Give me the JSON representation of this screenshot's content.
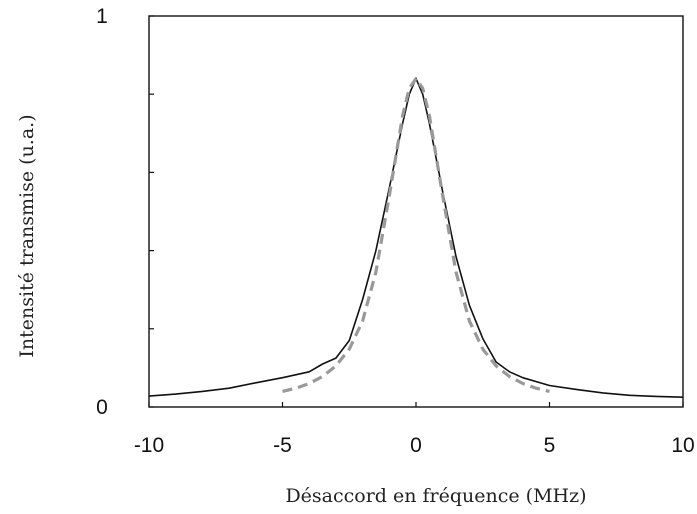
{
  "chart_data": {
    "type": "line",
    "xlabel": "Désaccord en fréquence (MHz)",
    "ylabel": "Intensité transmise (u.a.)",
    "xlim": [
      -10,
      10
    ],
    "ylim": [
      0,
      1
    ],
    "x_ticks": [
      -10,
      -5,
      0,
      5,
      10
    ],
    "x_tick_labels": [
      "-10",
      "-5",
      "0",
      "5",
      "10"
    ],
    "y_ticks": [
      0,
      0.2,
      0.4,
      0.6,
      0.8,
      1
    ],
    "y_tick_labels": [
      "0",
      "",
      "",
      "",
      "",
      "1"
    ],
    "grid": false,
    "legend": "none",
    "series": [
      {
        "style": "solid",
        "color": "#111111",
        "x": [
          -10,
          -9,
          -8,
          -7,
          -6,
          -5,
          -4,
          -3.5,
          -3,
          -2.5,
          -2,
          -1.5,
          -1,
          -0.5,
          -0.25,
          0,
          0.25,
          0.5,
          1,
          1.5,
          2,
          2.5,
          3,
          3.5,
          4,
          5,
          6,
          7,
          8,
          9,
          10
        ],
        "y": [
          0.028,
          0.033,
          0.04,
          0.048,
          0.062,
          0.075,
          0.09,
          0.11,
          0.125,
          0.17,
          0.275,
          0.4,
          0.56,
          0.725,
          0.8,
          0.84,
          0.8,
          0.725,
          0.55,
          0.385,
          0.26,
          0.175,
          0.115,
          0.09,
          0.075,
          0.055,
          0.045,
          0.036,
          0.03,
          0.027,
          0.025
        ]
      },
      {
        "style": "dashed",
        "color": "#999999",
        "x": [
          -5,
          -4.5,
          -4,
          -3.5,
          -3,
          -2.5,
          -2,
          -1.5,
          -1,
          -0.5,
          -0.25,
          0,
          0.25,
          0.5,
          1,
          1.5,
          2,
          2.5,
          3,
          3.5,
          4,
          4.5,
          5
        ],
        "y": [
          0.04,
          0.048,
          0.06,
          0.078,
          0.105,
          0.148,
          0.22,
          0.345,
          0.54,
          0.745,
          0.815,
          0.84,
          0.815,
          0.745,
          0.54,
          0.345,
          0.22,
          0.148,
          0.105,
          0.078,
          0.06,
          0.048,
          0.04
        ]
      }
    ]
  }
}
